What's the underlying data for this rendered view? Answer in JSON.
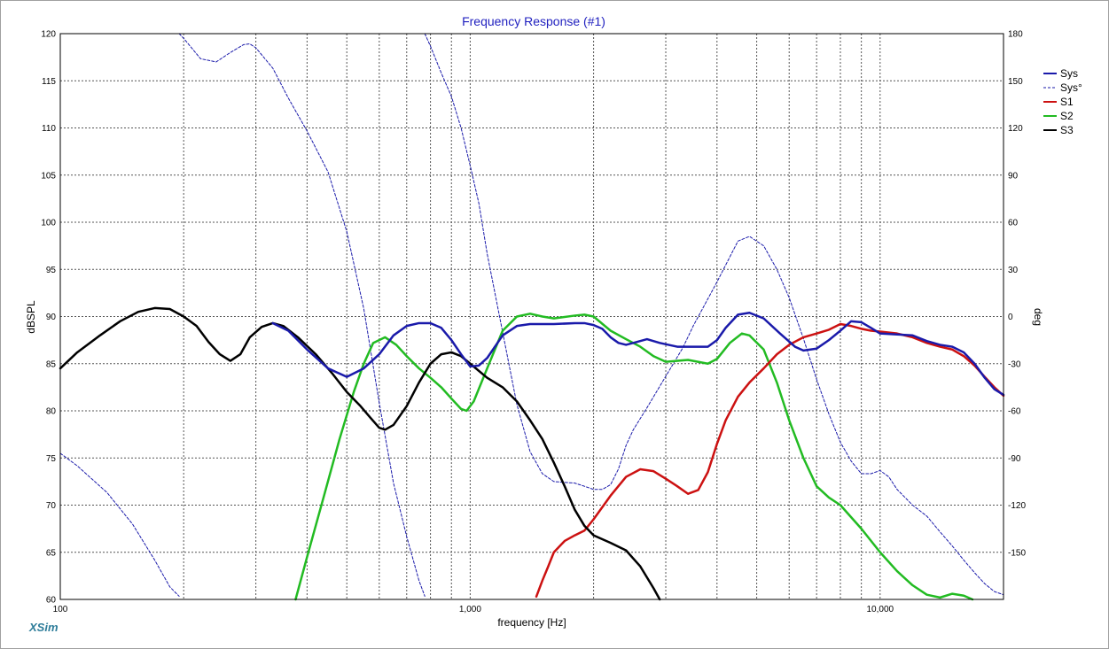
{
  "app": {
    "brand": "XSim"
  },
  "chart_data": {
    "type": "line",
    "title": "Frequency Response (#1)",
    "xlabel": "frequency [Hz]",
    "ylabel": "dBSPL",
    "y2label": "deg",
    "x_scale": "log",
    "xlim": [
      100,
      20000
    ],
    "ylim": [
      60,
      120
    ],
    "y2lim": [
      -180,
      180
    ],
    "x_tick_labels": [
      {
        "value": 100,
        "label": "100"
      },
      {
        "value": 1000,
        "label": "1,000"
      },
      {
        "value": 10000,
        "label": "10,000"
      }
    ],
    "y_ticks": [
      60,
      65,
      70,
      75,
      80,
      85,
      90,
      95,
      100,
      105,
      110,
      115,
      120
    ],
    "y2_ticks": [
      -150,
      -120,
      -90,
      -60,
      -30,
      0,
      30,
      60,
      90,
      120,
      150,
      180
    ],
    "grid": true,
    "legend_position": "right",
    "series": [
      {
        "name": "Sys",
        "axis": "left",
        "color": "#1a1aaa",
        "style": "solid",
        "width": 2.5,
        "points": [
          [
            330,
            89.3
          ],
          [
            360,
            88.5
          ],
          [
            400,
            86.5
          ],
          [
            450,
            84.5
          ],
          [
            500,
            83.6
          ],
          [
            550,
            84.5
          ],
          [
            600,
            86
          ],
          [
            650,
            88
          ],
          [
            700,
            89
          ],
          [
            750,
            89.3
          ],
          [
            800,
            89.3
          ],
          [
            850,
            88.8
          ],
          [
            900,
            87.5
          ],
          [
            950,
            86
          ],
          [
            1000,
            84.7
          ],
          [
            1050,
            84.8
          ],
          [
            1100,
            85.6
          ],
          [
            1200,
            88
          ],
          [
            1300,
            89
          ],
          [
            1400,
            89.2
          ],
          [
            1500,
            89.2
          ],
          [
            1600,
            89.2
          ],
          [
            1800,
            89.3
          ],
          [
            1900,
            89.3
          ],
          [
            2000,
            89.1
          ],
          [
            2100,
            88.7
          ],
          [
            2200,
            87.8
          ],
          [
            2300,
            87.2
          ],
          [
            2400,
            87
          ],
          [
            2500,
            87.2
          ],
          [
            2700,
            87.6
          ],
          [
            2900,
            87.2
          ],
          [
            3200,
            86.8
          ],
          [
            3500,
            86.8
          ],
          [
            3800,
            86.8
          ],
          [
            4000,
            87.5
          ],
          [
            4200,
            88.8
          ],
          [
            4500,
            90.2
          ],
          [
            4800,
            90.4
          ],
          [
            5200,
            89.8
          ],
          [
            5700,
            88.2
          ],
          [
            6200,
            86.8
          ],
          [
            6500,
            86.4
          ],
          [
            7000,
            86.6
          ],
          [
            7500,
            87.5
          ],
          [
            8000,
            88.5
          ],
          [
            8500,
            89.5
          ],
          [
            9000,
            89.4
          ],
          [
            9500,
            88.8
          ],
          [
            10000,
            88.2
          ],
          [
            11000,
            88.1
          ],
          [
            12000,
            88
          ],
          [
            13000,
            87.4
          ],
          [
            14000,
            87
          ],
          [
            15000,
            86.8
          ],
          [
            16000,
            86.2
          ],
          [
            17000,
            85
          ],
          [
            18000,
            83.5
          ],
          [
            19000,
            82.3
          ],
          [
            20000,
            81.7
          ]
        ]
      },
      {
        "name": "Sys°",
        "axis": "right",
        "color": "#1a1aaa",
        "style": "dashed",
        "width": 1,
        "segments": [
          [
            [
              100,
              -87
            ],
            [
              110,
              -95
            ],
            [
              130,
              -112
            ],
            [
              150,
              -132
            ],
            [
              170,
              -155
            ],
            [
              185,
              -172
            ],
            [
              195,
              -178
            ]
          ],
          [
            [
              195,
              180
            ],
            [
              200,
              177
            ],
            [
              220,
              164
            ],
            [
              240,
              162
            ],
            [
              260,
              168
            ],
            [
              280,
              173
            ],
            [
              290,
              173.5
            ],
            [
              300,
              171
            ],
            [
              330,
              158
            ],
            [
              360,
              139
            ],
            [
              400,
              118
            ],
            [
              450,
              92
            ],
            [
              500,
              54
            ],
            [
              550,
              5
            ],
            [
              600,
              -55
            ],
            [
              650,
              -106
            ],
            [
              700,
              -140
            ],
            [
              750,
              -168
            ],
            [
              775,
              -178
            ]
          ],
          [
            [
              775,
              180
            ],
            [
              800,
              172
            ],
            [
              850,
              155
            ],
            [
              900,
              140
            ],
            [
              950,
              120
            ],
            [
              1000,
              96
            ],
            [
              1050,
              72
            ],
            [
              1100,
              40
            ],
            [
              1200,
              -10
            ],
            [
              1300,
              -56
            ],
            [
              1400,
              -86
            ],
            [
              1500,
              -100
            ],
            [
              1600,
              -105
            ],
            [
              1800,
              -106
            ],
            [
              1900,
              -108
            ],
            [
              2000,
              -110
            ],
            [
              2100,
              -110
            ],
            [
              2200,
              -107
            ],
            [
              2300,
              -97
            ],
            [
              2400,
              -82
            ],
            [
              2500,
              -72
            ],
            [
              2700,
              -58
            ],
            [
              3000,
              -38
            ],
            [
              3300,
              -20
            ],
            [
              3500,
              -6
            ],
            [
              4000,
              22
            ],
            [
              4500,
              48
            ],
            [
              4800,
              51
            ],
            [
              5200,
              45
            ],
            [
              5600,
              30
            ],
            [
              6000,
              12
            ],
            [
              6500,
              -14
            ],
            [
              7000,
              -40
            ],
            [
              7500,
              -62
            ],
            [
              8000,
              -80
            ],
            [
              8500,
              -92
            ],
            [
              9000,
              -100
            ],
            [
              9500,
              -100
            ],
            [
              10000,
              -98
            ],
            [
              10500,
              -102
            ],
            [
              11000,
              -110
            ],
            [
              12000,
              -120
            ],
            [
              13000,
              -127
            ],
            [
              14000,
              -137
            ],
            [
              15000,
              -146
            ],
            [
              16000,
              -155
            ],
            [
              17000,
              -163
            ],
            [
              18000,
              -170
            ],
            [
              19000,
              -175
            ],
            [
              20000,
              -177
            ]
          ]
        ]
      },
      {
        "name": "S1",
        "axis": "left",
        "color": "#cc1111",
        "style": "solid",
        "width": 2.5,
        "points": [
          [
            1450,
            60.3
          ],
          [
            1500,
            62
          ],
          [
            1550,
            63.5
          ],
          [
            1600,
            65
          ],
          [
            1700,
            66.2
          ],
          [
            1800,
            66.8
          ],
          [
            1900,
            67.3
          ],
          [
            2000,
            68.5
          ],
          [
            2200,
            71
          ],
          [
            2400,
            73
          ],
          [
            2600,
            73.8
          ],
          [
            2800,
            73.6
          ],
          [
            3000,
            72.8
          ],
          [
            3200,
            72
          ],
          [
            3400,
            71.2
          ],
          [
            3600,
            71.6
          ],
          [
            3800,
            73.5
          ],
          [
            4000,
            76.5
          ],
          [
            4200,
            79
          ],
          [
            4500,
            81.5
          ],
          [
            4800,
            83
          ],
          [
            5200,
            84.5
          ],
          [
            5600,
            86
          ],
          [
            6000,
            87
          ],
          [
            6500,
            87.8
          ],
          [
            7000,
            88.2
          ],
          [
            7500,
            88.6
          ],
          [
            8000,
            89.2
          ],
          [
            8500,
            89
          ],
          [
            9000,
            88.7
          ],
          [
            9500,
            88.5
          ],
          [
            10000,
            88.4
          ],
          [
            11000,
            88.2
          ],
          [
            12000,
            87.8
          ],
          [
            13000,
            87.2
          ],
          [
            14000,
            86.8
          ],
          [
            15000,
            86.5
          ],
          [
            16000,
            85.8
          ],
          [
            17000,
            84.8
          ],
          [
            18000,
            83.6
          ],
          [
            19000,
            82.5
          ],
          [
            20000,
            81.6
          ]
        ]
      },
      {
        "name": "S2",
        "axis": "left",
        "color": "#22bb22",
        "style": "solid",
        "width": 2.5,
        "points": [
          [
            375,
            60
          ],
          [
            400,
            64.5
          ],
          [
            440,
            71
          ],
          [
            480,
            77
          ],
          [
            520,
            82
          ],
          [
            550,
            85
          ],
          [
            580,
            87.2
          ],
          [
            620,
            87.8
          ],
          [
            660,
            87
          ],
          [
            700,
            85.8
          ],
          [
            750,
            84.5
          ],
          [
            800,
            83.5
          ],
          [
            850,
            82.5
          ],
          [
            900,
            81.3
          ],
          [
            950,
            80.2
          ],
          [
            980,
            80
          ],
          [
            1020,
            81
          ],
          [
            1100,
            84.5
          ],
          [
            1200,
            88.5
          ],
          [
            1300,
            90
          ],
          [
            1400,
            90.3
          ],
          [
            1500,
            90
          ],
          [
            1600,
            89.8
          ],
          [
            1800,
            90.1
          ],
          [
            1900,
            90.2
          ],
          [
            2000,
            90
          ],
          [
            2200,
            88.5
          ],
          [
            2400,
            87.6
          ],
          [
            2600,
            86.8
          ],
          [
            2800,
            85.8
          ],
          [
            3000,
            85.2
          ],
          [
            3400,
            85.4
          ],
          [
            3800,
            85
          ],
          [
            4000,
            85.5
          ],
          [
            4300,
            87.2
          ],
          [
            4600,
            88.2
          ],
          [
            4800,
            88
          ],
          [
            5200,
            86.5
          ],
          [
            5600,
            83
          ],
          [
            6000,
            79
          ],
          [
            6500,
            75
          ],
          [
            7000,
            72
          ],
          [
            7500,
            70.8
          ],
          [
            8000,
            70
          ],
          [
            9000,
            67.5
          ],
          [
            10000,
            65
          ],
          [
            11000,
            63
          ],
          [
            12000,
            61.5
          ],
          [
            13000,
            60.5
          ],
          [
            14000,
            60.2
          ],
          [
            15000,
            60.6
          ],
          [
            16000,
            60.4
          ],
          [
            16800,
            60
          ]
        ]
      },
      {
        "name": "S3",
        "axis": "left",
        "color": "#000000",
        "style": "solid",
        "width": 2.5,
        "points": [
          [
            100,
            84.5
          ],
          [
            110,
            86.2
          ],
          [
            125,
            88
          ],
          [
            140,
            89.5
          ],
          [
            155,
            90.5
          ],
          [
            170,
            90.9
          ],
          [
            185,
            90.8
          ],
          [
            200,
            90
          ],
          [
            215,
            89
          ],
          [
            230,
            87.3
          ],
          [
            245,
            86
          ],
          [
            260,
            85.3
          ],
          [
            275,
            86
          ],
          [
            290,
            87.8
          ],
          [
            310,
            88.9
          ],
          [
            330,
            89.3
          ],
          [
            350,
            89
          ],
          [
            380,
            87.8
          ],
          [
            420,
            86
          ],
          [
            460,
            84
          ],
          [
            500,
            82
          ],
          [
            540,
            80.5
          ],
          [
            570,
            79.3
          ],
          [
            600,
            78.2
          ],
          [
            620,
            78
          ],
          [
            650,
            78.5
          ],
          [
            700,
            80.5
          ],
          [
            750,
            83
          ],
          [
            800,
            85
          ],
          [
            850,
            86
          ],
          [
            900,
            86.2
          ],
          [
            950,
            85.8
          ],
          [
            1000,
            85
          ],
          [
            1100,
            83.5
          ],
          [
            1200,
            82.5
          ],
          [
            1300,
            81
          ],
          [
            1400,
            79
          ],
          [
            1500,
            77
          ],
          [
            1600,
            74.5
          ],
          [
            1700,
            72
          ],
          [
            1800,
            69.5
          ],
          [
            1900,
            67.8
          ],
          [
            2000,
            66.8
          ],
          [
            2200,
            66
          ],
          [
            2400,
            65.2
          ],
          [
            2600,
            63.5
          ],
          [
            2800,
            61.2
          ],
          [
            2900,
            60
          ]
        ]
      }
    ]
  }
}
